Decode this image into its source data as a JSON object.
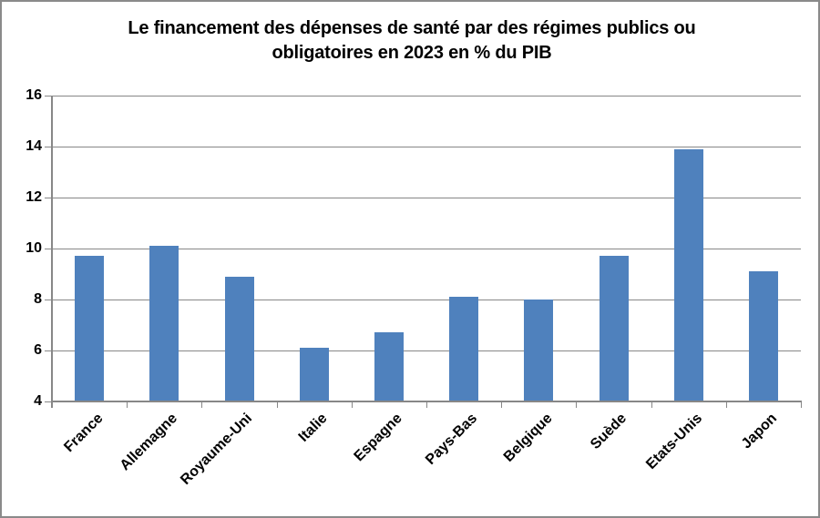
{
  "chart_data": {
    "type": "bar",
    "title": "Le financement des dépenses de santé par des régimes publics ou obligatoires en 2023 en % du PIB",
    "categories": [
      "France",
      "Allemagne",
      "Royaume-Uni",
      "Italie",
      "Espagne",
      "Pays-Bas",
      "Belgique",
      "Suède",
      "Etats-Unis",
      "Japon"
    ],
    "values": [
      9.7,
      10.1,
      8.9,
      6.1,
      6.7,
      8.1,
      8.0,
      9.7,
      13.9,
      9.1
    ],
    "xlabel": "",
    "ylabel": "",
    "ylim": [
      4,
      16
    ],
    "yticks": [
      4,
      6,
      8,
      10,
      12,
      14,
      16
    ],
    "grid": true,
    "legend_position": "none",
    "bar_color": "#4F81BD",
    "axis_color": "#878787",
    "text_color": "#000000"
  }
}
